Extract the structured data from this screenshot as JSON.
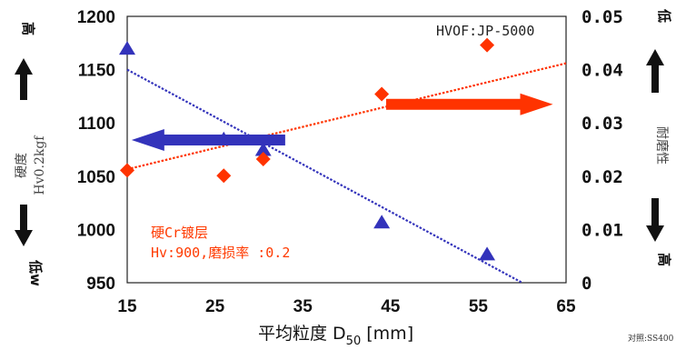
{
  "chart_data": {
    "type": "scatter",
    "annotation_top": "HVOF:JP-5000",
    "x_ticks": [
      "15",
      "25",
      "35",
      "45",
      "55",
      "65"
    ],
    "y_left_ticks": [
      "1200",
      "1150",
      "1100",
      "1050",
      "1000",
      "950"
    ],
    "y_right_ticks": [
      "0.05",
      "0.04",
      "0.03",
      "0.02",
      "0.01",
      "0"
    ],
    "xlim": [
      15,
      65
    ],
    "ylim_left": [
      950,
      1200
    ],
    "ylim_right": [
      0,
      0.05
    ],
    "x_label_main": "平均粒度 D",
    "x_label_sub": "50",
    "x_label_unit": " [mm]",
    "y_left_label_line1": "硬度",
    "y_left_label_line2": "Hv0.2kgf",
    "y_right_label": "耐磨性",
    "left_high": "高",
    "left_low": "低w",
    "right_low": "低",
    "right_high": "高",
    "cr_label_line1": "硬Cr镀层",
    "cr_label_line2": "Hv:900,磨损率 :0.2",
    "note": "对照:SS400",
    "colors": {
      "hardness": "#3333bb",
      "wear": "#ff3300"
    },
    "series": [
      {
        "axis": "left",
        "marker": "triangle",
        "x": [
          15,
          26,
          30.5,
          44,
          56
        ],
        "y": [
          1170,
          1085,
          1075,
          1007,
          977
        ]
      },
      {
        "axis": "right",
        "marker": "diamond",
        "x": [
          15,
          26,
          30.5,
          44,
          56
        ],
        "y": [
          0.0211,
          0.0201,
          0.0232,
          0.0354,
          0.0446
        ]
      }
    ],
    "trendlines": [
      {
        "axis": "left",
        "x": [
          15,
          60
        ],
        "y": [
          1150,
          950
        ]
      },
      {
        "axis": "right",
        "x": [
          15,
          65
        ],
        "y": [
          0.0213,
          0.0412
        ]
      }
    ],
    "arrows": [
      {
        "axis": "left",
        "direction": "left",
        "x_from": 33,
        "x_to": 15.5,
        "y": 1084
      },
      {
        "axis": "right",
        "direction": "right",
        "x_from": 44.5,
        "x_to": 63.5,
        "y": 0.0335
      }
    ]
  }
}
